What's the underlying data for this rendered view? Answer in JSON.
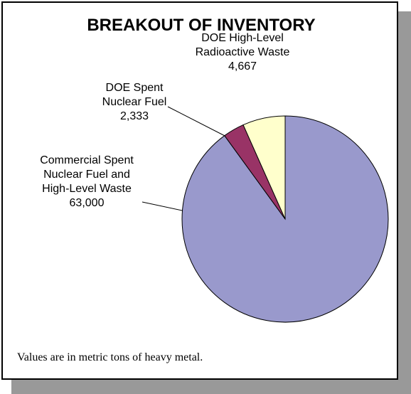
{
  "chart_data": {
    "type": "pie",
    "title": "BREAKOUT OF INVENTORY",
    "categories": [
      "Commercial Spent Nuclear Fuel and High-Level Waste",
      "DOE Spent Nuclear Fuel",
      "DOE High-Level Radioactive Waste"
    ],
    "values": [
      63000,
      2333,
      4667
    ],
    "value_labels": [
      "63,000",
      "2,333",
      "4,667"
    ],
    "colors": [
      "#9999cc",
      "#993366",
      "#ffffcc"
    ],
    "note": "Values are in metric tons of heavy metal."
  }
}
